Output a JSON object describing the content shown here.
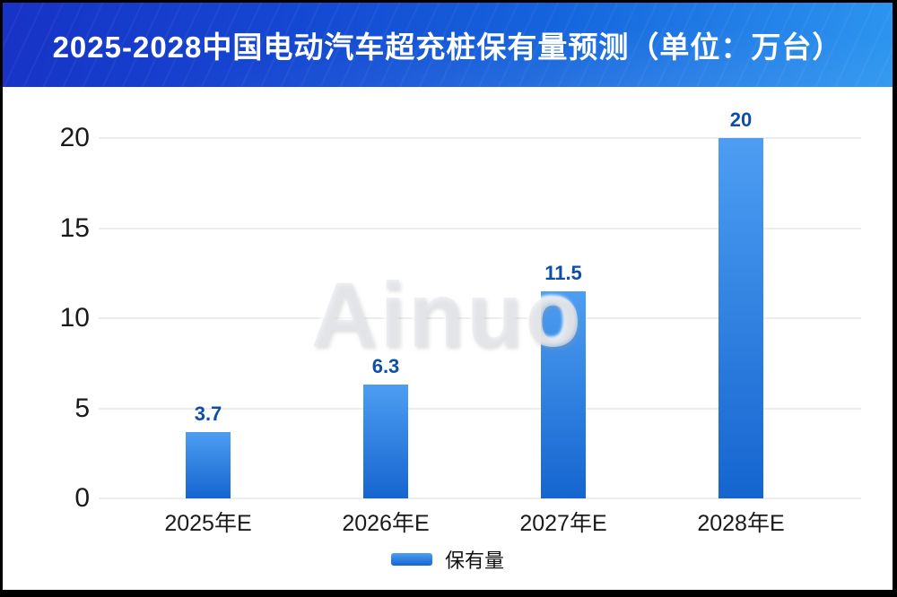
{
  "header": {
    "title": "2025-2028中国电动汽车超充桩保有量预测（单位：万台）"
  },
  "watermark": "Ainuo",
  "legend": {
    "label": "保有量"
  },
  "colors": {
    "header_gradient_left": "#1733c6",
    "header_gradient_right": "#2d96f0",
    "bar_gradient_top": "#4d9ef2",
    "bar_gradient_bottom": "#1565d0",
    "value_label": "#0d4fa8",
    "gridline": "#ededed",
    "axis_text": "#1a1a1a",
    "panel_background": "#ffffff",
    "title_text": "#ffffff"
  },
  "chart_data": {
    "type": "bar",
    "title": "2025-2028中国电动汽车超充桩保有量预测（单位：万台）",
    "categories": [
      "2025年E",
      "2026年E",
      "2027年E",
      "2028年E"
    ],
    "series": [
      {
        "name": "保有量",
        "values": [
          3.7,
          6.3,
          11.5,
          20
        ]
      }
    ],
    "data_labels": [
      "3.7",
      "6.3",
      "11.5",
      "20"
    ],
    "xlabel": "",
    "ylabel": "",
    "ylim": [
      0,
      20
    ],
    "yticks": [
      0,
      5,
      10,
      15,
      20
    ],
    "grid": true,
    "legend_position": "bottom",
    "unit": "万台"
  }
}
